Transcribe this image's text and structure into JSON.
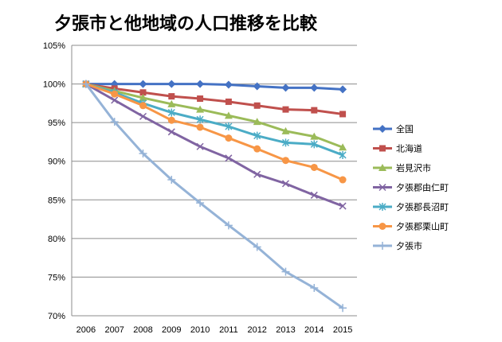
{
  "chart_data": {
    "type": "line",
    "title": "夕張市と他地域の人口推移を比較",
    "x": [
      "2006",
      "2007",
      "2008",
      "2009",
      "2010",
      "2011",
      "2012",
      "2013",
      "2014",
      "2015"
    ],
    "ylim": [
      70,
      105
    ],
    "yticks": [
      "70%",
      "75%",
      "80%",
      "85%",
      "90%",
      "95%",
      "100%",
      "105%"
    ],
    "grid": true,
    "legend_position": "right",
    "series": [
      {
        "name": "全国",
        "color": "#4472C4",
        "marker": "diamond",
        "values": [
          100,
          100,
          100,
          100,
          100,
          99.9,
          99.7,
          99.5,
          99.5,
          99.3
        ]
      },
      {
        "name": "北海道",
        "color": "#C0504D",
        "marker": "square",
        "values": [
          100,
          99.4,
          98.9,
          98.4,
          98.1,
          97.7,
          97.2,
          96.7,
          96.6,
          96.1
        ]
      },
      {
        "name": "岩見沢市",
        "color": "#9BBB59",
        "marker": "triangle",
        "values": [
          100,
          99.1,
          98.2,
          97.4,
          96.7,
          95.9,
          95.1,
          93.9,
          93.2,
          91.8
        ]
      },
      {
        "name": "夕張郡由仁町",
        "color": "#8064A2",
        "marker": "x",
        "values": [
          100,
          97.9,
          95.8,
          93.8,
          91.9,
          90.4,
          88.3,
          87.1,
          85.6,
          84.2
        ]
      },
      {
        "name": "夕張郡長沼町",
        "color": "#4BACC6",
        "marker": "star",
        "values": [
          100,
          98.9,
          97.5,
          96.3,
          95.4,
          94.5,
          93.3,
          92.4,
          92.2,
          90.8
        ]
      },
      {
        "name": "夕張郡栗山町",
        "color": "#F79646",
        "marker": "circle",
        "values": [
          100,
          98.7,
          97.2,
          95.3,
          94.4,
          93.0,
          91.6,
          90.1,
          89.2,
          87.6
        ]
      },
      {
        "name": "夕張市",
        "color": "#95B3D7",
        "marker": "plus",
        "values": [
          100,
          95.1,
          91.0,
          87.6,
          84.6,
          81.7,
          78.9,
          75.7,
          73.6,
          71.0
        ]
      }
    ]
  }
}
